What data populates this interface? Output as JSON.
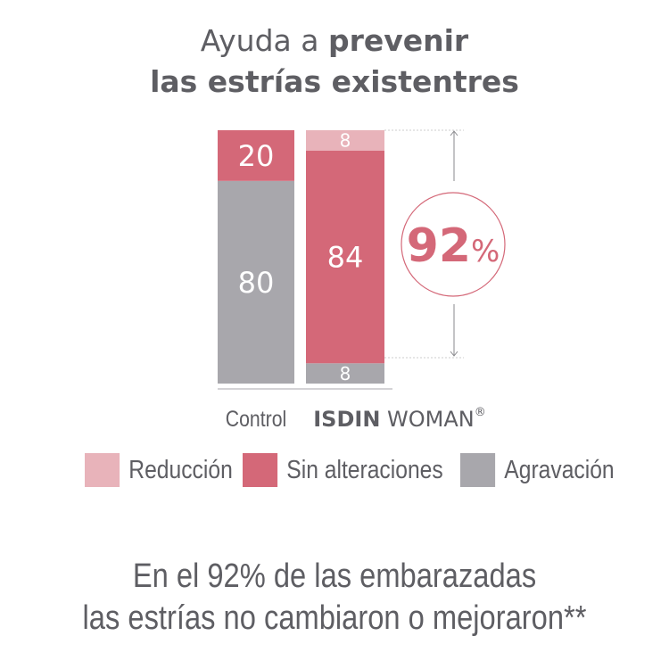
{
  "title": {
    "line1_regular": "Ayuda a ",
    "line1_bold": "prevenir",
    "line2": "las estrías existentres"
  },
  "chart_data": {
    "type": "bar",
    "stacked": true,
    "categories": [
      "Control",
      "ISDIN WOMAN®"
    ],
    "category_labels": {
      "control": "Control",
      "brand_bold": "ISDIN",
      "brand_regular": "WOMAN",
      "brand_mark": "®"
    },
    "series": [
      {
        "name": "Agravación",
        "values": [
          80,
          8
        ],
        "color": "#a8a7ac"
      },
      {
        "name": "Sin alteraciones",
        "values": [
          20,
          84
        ],
        "color": "#d46878"
      },
      {
        "name": "Reducción",
        "values": [
          0,
          8
        ],
        "color": "#e8b3ba"
      }
    ],
    "ylim": [
      0,
      100
    ],
    "annotation": {
      "value": "92",
      "unit": "%",
      "color": "#d46878"
    },
    "legend_position": "bottom"
  },
  "footer": {
    "line1": "En el 92% de las embarazadas",
    "line2": "las estrías no cambiaron o mejoraron**"
  }
}
